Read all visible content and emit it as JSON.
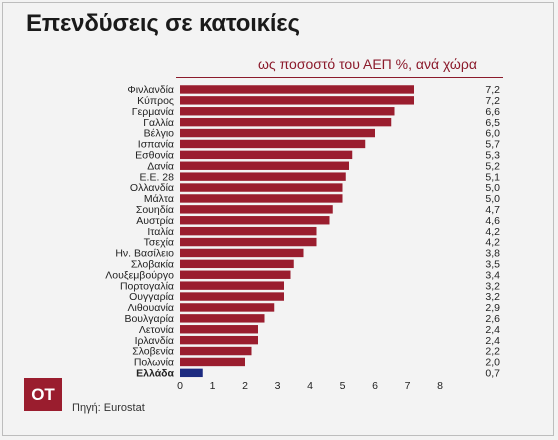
{
  "title": "Επενδύσεις σε κατοικίες",
  "subtitle": "ως ποσοστό του ΑΕΠ  %, ανά χώρα",
  "logo_text": "ΟΤ",
  "source": "Πηγή: Eurostat",
  "colors": {
    "bar": "#9a1d2e",
    "highlight": "#1c2a80",
    "text": "#222222"
  },
  "chart_data": {
    "type": "bar",
    "orientation": "horizontal",
    "title": "Επενδύσεις σε κατοικίες",
    "subtitle": "ως ποσοστό του ΑΕΠ  %, ανά χώρα",
    "categories": [
      "Φινλανδία",
      "Κύπρος",
      "Γερμανία",
      "Γαλλία",
      "Βέλγιο",
      "Ισπανία",
      "Εσθονία",
      "Δανία",
      "Ε.Ε. 28",
      "Ολλανδία",
      "Μάλτα",
      "Σουηδία",
      "Αυστρία",
      "Ιταλία",
      "Τσεχία",
      "Ην. Βασίλειο",
      "Σλοβακία",
      "Λουξεμβούργο",
      "Πορτογαλία",
      "Ουγγαρία",
      "Λιθουανία",
      "Βουλγαρία",
      "Λετονία",
      "Ιρλανδία",
      "Σλοβενία",
      "Πολωνία",
      "Ελλάδα"
    ],
    "values": [
      7.2,
      7.2,
      6.6,
      6.5,
      6.0,
      5.7,
      5.3,
      5.2,
      5.1,
      5.0,
      5.0,
      4.7,
      4.6,
      4.2,
      4.2,
      3.8,
      3.5,
      3.4,
      3.2,
      3.2,
      2.9,
      2.6,
      2.4,
      2.4,
      2.2,
      2.0,
      0.7
    ],
    "value_labels": [
      "7,2",
      "7,2",
      "6,6",
      "6,5",
      "6,0",
      "5,7",
      "5,3",
      "5,2",
      "5,1",
      "5,0",
      "5,0",
      "4,7",
      "4,6",
      "4,2",
      "4,2",
      "3,8",
      "3,5",
      "3,4",
      "3,2",
      "3,2",
      "2,9",
      "2,6",
      "2,4",
      "2,4",
      "2,2",
      "2,0",
      "0,7"
    ],
    "highlight": "Ελλάδα",
    "xlim": [
      0,
      8
    ],
    "xticks": [
      0,
      1,
      2,
      3,
      4,
      5,
      6,
      7,
      8
    ],
    "grid": false
  }
}
